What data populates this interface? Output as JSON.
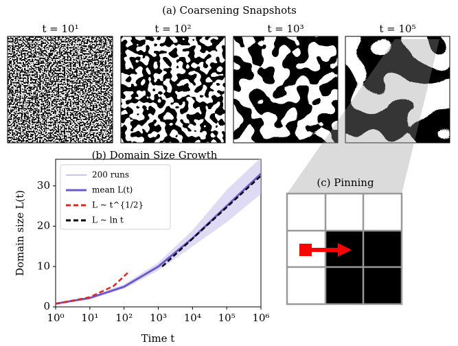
{
  "snapshots": {
    "title": "(a) Coarsening Snapshots",
    "labels": [
      "t = 10¹",
      "t = 10²",
      "t = 10³",
      "t = 10⁵"
    ]
  },
  "pinning": {
    "title": "(c) Pinning"
  },
  "chart_data": {
    "type": "line",
    "title": "(b) Domain Size Growth",
    "x_label": "Time t",
    "y_label": "Domain size L(t)",
    "log_x": true,
    "xlim": [
      1,
      1000000
    ],
    "xticks": [
      {
        "value": 1,
        "label": "10⁰"
      },
      {
        "value": 10,
        "label": "10¹"
      },
      {
        "value": 100,
        "label": "10²"
      },
      {
        "value": 1000,
        "label": "10³"
      },
      {
        "value": 10000,
        "label": "10⁴"
      },
      {
        "value": 100000,
        "label": "10⁵"
      },
      {
        "value": 1000000,
        "label": "10⁶"
      }
    ],
    "ylim": [
      0,
      36.6
    ],
    "yticks": [
      0,
      10,
      20,
      30
    ],
    "legend": "upper left",
    "series": [
      {
        "name": "200 runs",
        "color": "#c9c3ee",
        "x": [
          1,
          10,
          100,
          1000,
          10000,
          100000,
          1000000
        ],
        "values": [
          0.9,
          2.4,
          5.6,
          11,
          19,
          29,
          37
        ],
        "lower": [
          0.7,
          2,
          4.5,
          9,
          15,
          21,
          28
        ]
      },
      {
        "name": "mean L(t)",
        "color": "#6a5acd",
        "x": [
          1,
          10,
          100,
          1000,
          10000,
          100000,
          1000000
        ],
        "values": [
          0.8,
          2.2,
          5,
          10,
          17,
          25,
          33
        ]
      },
      {
        "name": "L ∼ t^{1/2}",
        "color": "#e8201e",
        "dash": true,
        "x": [
          1,
          10,
          50,
          130
        ],
        "values": [
          0.75,
          2.4,
          5.2,
          8.5
        ]
      },
      {
        "name": "L ∼ ln t",
        "color": "#000000",
        "dash": true,
        "x": [
          1300,
          1000000
        ],
        "values": [
          10,
          32.5
        ]
      }
    ]
  }
}
